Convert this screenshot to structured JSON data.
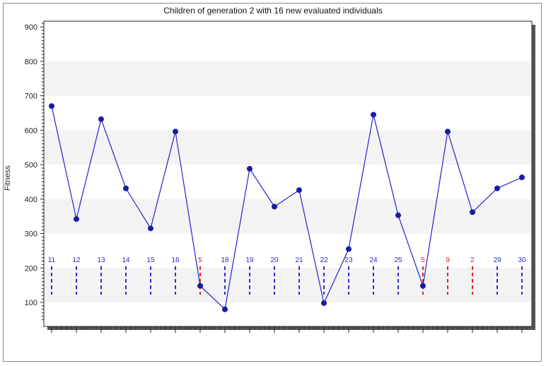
{
  "chart_data": {
    "type": "line",
    "title": "Children of generation 2 with 16 new evaluated individuals",
    "xlabel": "",
    "ylabel": "Fitness",
    "ylim": [
      0,
      900
    ],
    "yticks": [
      100,
      200,
      300,
      400,
      500,
      600,
      700,
      800,
      900
    ],
    "grid": "alternating horizontal bands",
    "colors": {
      "line": "#2222cc",
      "marker": "#1a1aa8",
      "new_id": "#2a2ad0",
      "reused_id": "#e02020",
      "band": "#f3f3f3"
    },
    "series": [
      {
        "values": [
          670,
          342,
          632,
          431,
          315,
          596,
          148,
          80,
          488,
          378,
          426,
          98,
          255,
          645,
          353,
          148,
          596,
          362,
          431,
          463
        ]
      }
    ],
    "individuals": [
      {
        "id": "11",
        "reused": false
      },
      {
        "id": "12",
        "reused": false
      },
      {
        "id": "13",
        "reused": false
      },
      {
        "id": "14",
        "reused": false
      },
      {
        "id": "15",
        "reused": false
      },
      {
        "id": "16",
        "reused": false
      },
      {
        "id": "5",
        "reused": true
      },
      {
        "id": "18",
        "reused": false
      },
      {
        "id": "19",
        "reused": false
      },
      {
        "id": "20",
        "reused": false
      },
      {
        "id": "21",
        "reused": false
      },
      {
        "id": "22",
        "reused": false
      },
      {
        "id": "23",
        "reused": false
      },
      {
        "id": "24",
        "reused": false
      },
      {
        "id": "25",
        "reused": false
      },
      {
        "id": "5",
        "reused": true
      },
      {
        "id": "9",
        "reused": true
      },
      {
        "id": "2",
        "reused": true
      },
      {
        "id": "29",
        "reused": false
      },
      {
        "id": "30",
        "reused": false
      }
    ]
  }
}
